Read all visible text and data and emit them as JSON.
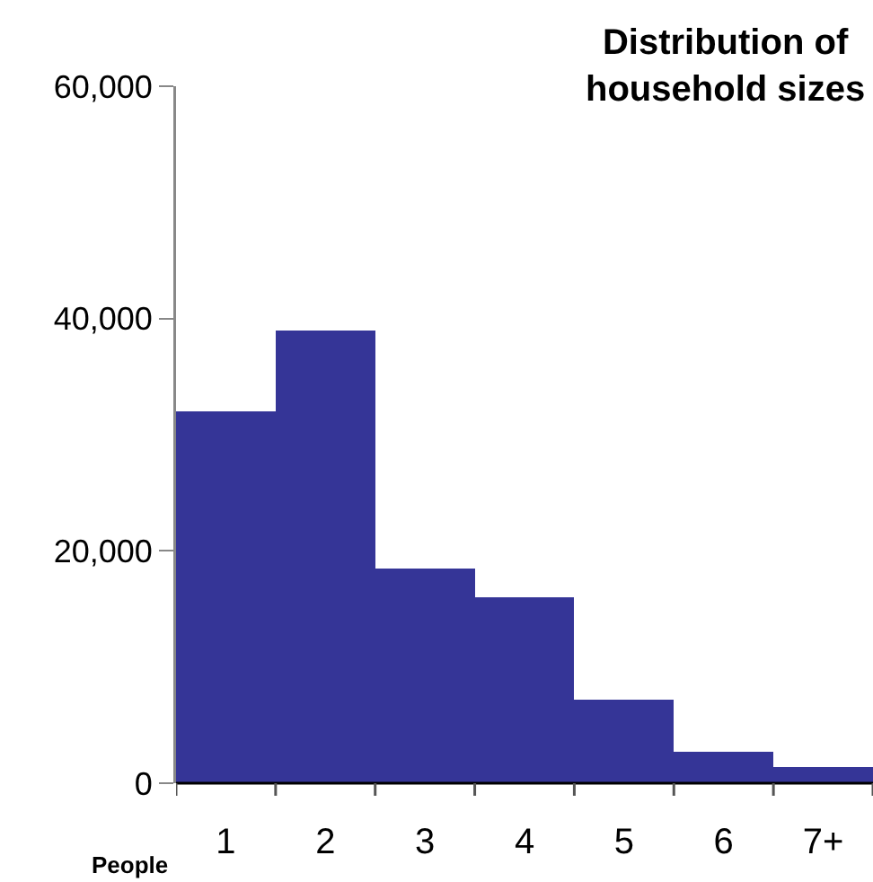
{
  "chart_data": {
    "type": "bar",
    "title": "Distribution of\nhousehold sizes",
    "xlabel": "People",
    "categories": [
      "1",
      "2",
      "3",
      "4",
      "5",
      "6",
      "7+"
    ],
    "values": [
      32000,
      39000,
      18500,
      16000,
      7200,
      2700,
      1400
    ],
    "color": "#353597",
    "ylim": [
      0,
      60000
    ],
    "yticks": [
      {
        "value": 0,
        "label": "0"
      },
      {
        "value": 20000,
        "label": "20,000"
      },
      {
        "value": 40000,
        "label": "40,000"
      },
      {
        "value": 60000,
        "label": "60,000"
      }
    ],
    "grid": false,
    "legend": false
  }
}
